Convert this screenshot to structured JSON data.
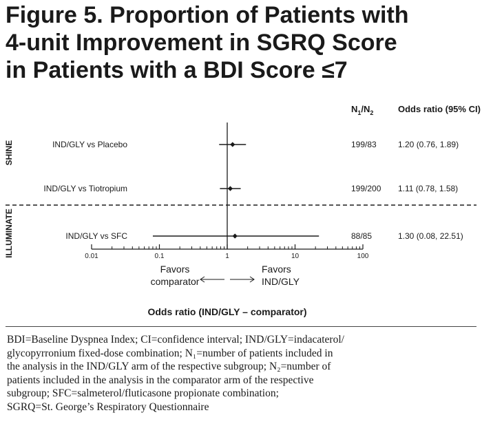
{
  "figure": {
    "title_lines": [
      "Figure 5. Proportion of Patients with",
      "4-unit Improvement in SGRQ Score",
      "in Patients with a BDI Score ≤7"
    ]
  },
  "chart_data": {
    "type": "forest",
    "scale": "log",
    "xlim": [
      0.01,
      100
    ],
    "xticks": [
      0.01,
      0.1,
      1,
      10,
      100
    ],
    "xtick_labels": [
      "0.01",
      "0.1",
      "1",
      "10",
      "100"
    ],
    "reference_line": 1,
    "xlabel": "Odds ratio (IND/GLY – comparator)",
    "favors_left": [
      "Favors",
      "comparator"
    ],
    "favors_right": [
      "Favors",
      "IND/GLY"
    ],
    "column_headers": {
      "n": "N",
      "n_sub1": "1",
      "n_slash": "/N",
      "n_sub2": "2",
      "or": "Odds ratio (95% CI)"
    },
    "groups": [
      {
        "name": "SHINE",
        "rows": [
          {
            "label": "IND/GLY vs Placebo",
            "or": 1.2,
            "ci_low": 0.76,
            "ci_high": 1.89,
            "n": "199/83",
            "or_text": "1.20 (0.76, 1.89)"
          },
          {
            "label": "IND/GLY vs Tiotropium",
            "or": 1.11,
            "ci_low": 0.78,
            "ci_high": 1.58,
            "n": "199/200",
            "or_text": "1.11 (0.78, 1.58)"
          }
        ]
      },
      {
        "name": "ILLUMINATE",
        "rows": [
          {
            "label": "IND/GLY vs SFC",
            "or": 1.3,
            "ci_low": 0.08,
            "ci_high": 22.51,
            "n": "88/85",
            "or_text": "1.30 (0.08, 22.51)"
          }
        ]
      }
    ]
  },
  "footnote": {
    "lines": [
      "BDI=Baseline Dyspnea Index; CI=confidence interval; IND/GLY=indacaterol/",
      "glycopyrronium fixed-dose combination; N₁=number of patients included in",
      "the analysis in the IND/GLY arm of the respective subgroup; N₂=number of",
      "patients included in the analysis in the comparator arm of the respective",
      "subgroup; SFC=salmeterol/fluticasone propionate combination;",
      "SGRQ=St. George’s Respiratory Questionnaire"
    ]
  }
}
